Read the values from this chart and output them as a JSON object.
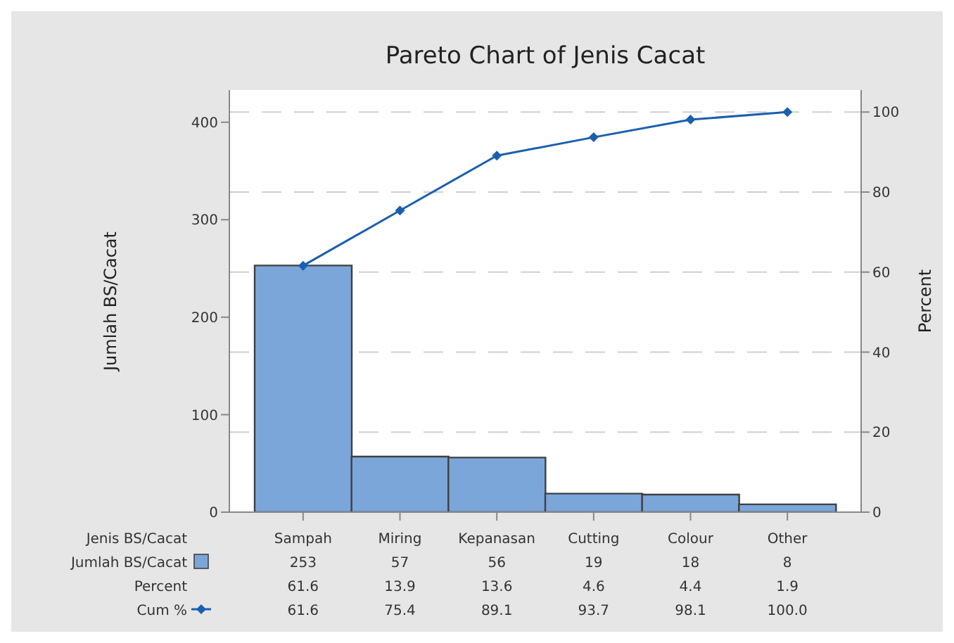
{
  "chart_data": {
    "type": "bar",
    "title": "Pareto Chart of Jenis Cacat",
    "xlabel": "Jenis BS/Cacat",
    "ylabel": "Jumlah BS/Cacat",
    "y2label": "Percent",
    "categories": [
      "Sampah",
      "Miring",
      "Kepanasan",
      "Cutting",
      "Colour",
      "Other"
    ],
    "series": [
      {
        "name": "Jumlah BS/Cacat",
        "color": "#7ba6da",
        "values": [
          253,
          57,
          56,
          19,
          18,
          8
        ],
        "value_labels": [
          "253",
          "57",
          "56",
          "19",
          "18",
          "8"
        ]
      },
      {
        "name": "Cum %",
        "type": "line",
        "axis": "y2",
        "color": "#1a5faf",
        "values": [
          61.6,
          75.4,
          89.1,
          93.7,
          98.1,
          100.0
        ],
        "value_labels": [
          "61.6",
          "75.4",
          "89.1",
          "93.7",
          "98.1",
          "100.0"
        ]
      }
    ],
    "ylim": [
      0,
      433
    ],
    "yticks": [
      0,
      100,
      200,
      300,
      400
    ],
    "y2lim": [
      0,
      105.5
    ],
    "y2ticks": [
      0,
      20,
      40,
      60,
      80,
      100
    ],
    "grid": "y",
    "marker": "diamond",
    "legend": "bottom left",
    "annotations": [
      "Percent",
      "61.6",
      "13.9",
      "13.6",
      "4.6",
      "4.4",
      "1.9"
    ]
  }
}
